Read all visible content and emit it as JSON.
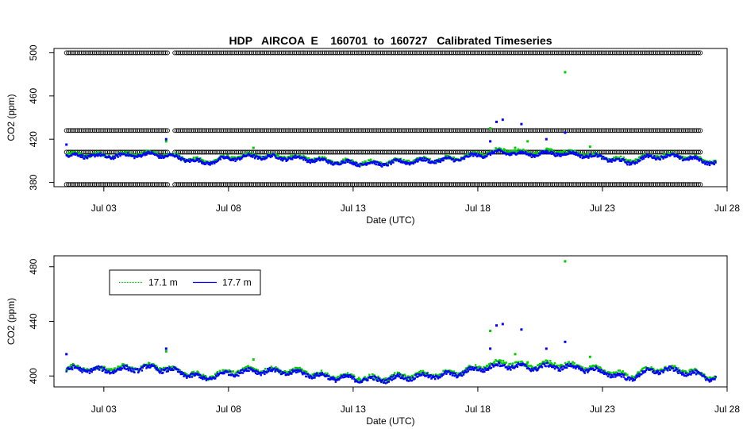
{
  "chart_data": [
    {
      "type": "scatter",
      "title": "HDP   AIRCOA  E    160701  to  160727   Calibrated Timeseries",
      "xlabel": "Date (UTC)",
      "ylabel": "CO2 (ppm)",
      "xlim": [
        "2016-07-01",
        "2016-07-28"
      ],
      "ylim": [
        376,
        504
      ],
      "xticks": [
        "Jul 03",
        "Jul 08",
        "Jul 13",
        "Jul 18",
        "Jul 23",
        "Jul 28"
      ],
      "yticks": [
        380,
        420,
        460,
        500
      ],
      "grid": false,
      "series": [
        {
          "marker": "open-circle",
          "color": "#000000",
          "levels": [
            378,
            408,
            428,
            500
          ],
          "x": [
            "2016-07-01",
            "2016-07-27"
          ]
        },
        {
          "marker": "dot",
          "color": "#00cc00",
          "x": [
            "2016-07-01",
            "2016-07-02",
            "2016-07-03",
            "2016-07-04",
            "2016-07-05",
            "2016-07-06",
            "2016-07-07",
            "2016-07-08",
            "2016-07-09",
            "2016-07-10",
            "2016-07-11",
            "2016-07-12",
            "2016-07-13",
            "2016-07-14",
            "2016-07-15",
            "2016-07-16",
            "2016-07-17",
            "2016-07-18",
            "2016-07-19",
            "2016-07-20",
            "2016-07-21",
            "2016-07-22",
            "2016-07-23",
            "2016-07-24",
            "2016-07-25",
            "2016-07-26",
            "2016-07-27"
          ],
          "y": [
            405,
            406,
            405,
            406,
            407,
            404,
            399,
            403,
            405,
            404,
            403,
            400,
            399,
            398,
            400,
            401,
            402,
            406,
            410,
            407,
            409,
            407,
            404,
            400,
            405,
            405,
            401
          ],
          "spikes": [
            [
              "2016-07-18 12:00",
              430
            ],
            [
              "2016-07-19 12:00",
              412
            ],
            [
              "2016-07-20 00:00",
              418
            ],
            [
              "2016-07-21 12:00",
              482
            ],
            [
              "2016-07-22 12:00",
              413
            ],
            [
              "2016-07-09 00:00",
              412
            ],
            [
              "2016-07-05 12:00",
              418
            ]
          ]
        },
        {
          "marker": "dot",
          "color": "#0000ff",
          "x": [
            "2016-07-01",
            "2016-07-02",
            "2016-07-03",
            "2016-07-04",
            "2016-07-05",
            "2016-07-06",
            "2016-07-07",
            "2016-07-08",
            "2016-07-09",
            "2016-07-10",
            "2016-07-11",
            "2016-07-12",
            "2016-07-13",
            "2016-07-14",
            "2016-07-15",
            "2016-07-16",
            "2016-07-17",
            "2016-07-18",
            "2016-07-19",
            "2016-07-20",
            "2016-07-21",
            "2016-07-22",
            "2016-07-23",
            "2016-07-24",
            "2016-07-25",
            "2016-07-26",
            "2016-07-27"
          ],
          "y": [
            404,
            405,
            404,
            405,
            406,
            403,
            398,
            402,
            404,
            403,
            402,
            399,
            398,
            397,
            399,
            400,
            401,
            405,
            408,
            406,
            407,
            406,
            403,
            398,
            404,
            404,
            400
          ],
          "spikes": [
            [
              "2016-07-01 12:00",
              415
            ],
            [
              "2016-07-05 12:00",
              420
            ],
            [
              "2016-07-18 18:00",
              436
            ],
            [
              "2016-07-19 00:00",
              438
            ],
            [
              "2016-07-19 18:00",
              434
            ],
            [
              "2016-07-20 18:00",
              420
            ],
            [
              "2016-07-21 12:00",
              426
            ],
            [
              "2016-07-18 12:00",
              418
            ]
          ]
        }
      ]
    },
    {
      "type": "scatter",
      "xlabel": "Date (UTC)",
      "ylabel": "CO2 (ppm)",
      "xlim": [
        "2016-07-01",
        "2016-07-28"
      ],
      "ylim": [
        392,
        488
      ],
      "xticks": [
        "Jul 03",
        "Jul 08",
        "Jul 13",
        "Jul 18",
        "Jul 23",
        "Jul 28"
      ],
      "yticks": [
        400,
        440,
        480
      ],
      "grid": false,
      "legend_position": "top-left",
      "series": [
        {
          "name": "17.1 m",
          "marker": "dot",
          "color": "#00cc00",
          "x": [
            "2016-07-01",
            "2016-07-02",
            "2016-07-03",
            "2016-07-04",
            "2016-07-05",
            "2016-07-06",
            "2016-07-07",
            "2016-07-08",
            "2016-07-09",
            "2016-07-10",
            "2016-07-11",
            "2016-07-12",
            "2016-07-13",
            "2016-07-14",
            "2016-07-15",
            "2016-07-16",
            "2016-07-17",
            "2016-07-18",
            "2016-07-19",
            "2016-07-20",
            "2016-07-21",
            "2016-07-22",
            "2016-07-23",
            "2016-07-24",
            "2016-07-25",
            "2016-07-26",
            "2016-07-27"
          ],
          "y": [
            405,
            406,
            405,
            406,
            407,
            404,
            399,
            403,
            405,
            404,
            403,
            400,
            399,
            398,
            400,
            401,
            402,
            406,
            410,
            407,
            409,
            407,
            404,
            400,
            405,
            405,
            401
          ],
          "spikes": [
            [
              "2016-07-18 12:00",
              433
            ],
            [
              "2016-07-19 12:00",
              416
            ],
            [
              "2016-07-20 00:00",
              410
            ],
            [
              "2016-07-21 12:00",
              484
            ],
            [
              "2016-07-22 12:00",
              414
            ],
            [
              "2016-07-09 00:00",
              412
            ],
            [
              "2016-07-05 12:00",
              418
            ]
          ]
        },
        {
          "name": "17.7 m",
          "marker": "dot",
          "color": "#0000ff",
          "x": [
            "2016-07-01",
            "2016-07-02",
            "2016-07-03",
            "2016-07-04",
            "2016-07-05",
            "2016-07-06",
            "2016-07-07",
            "2016-07-08",
            "2016-07-09",
            "2016-07-10",
            "2016-07-11",
            "2016-07-12",
            "2016-07-13",
            "2016-07-14",
            "2016-07-15",
            "2016-07-16",
            "2016-07-17",
            "2016-07-18",
            "2016-07-19",
            "2016-07-20",
            "2016-07-21",
            "2016-07-22",
            "2016-07-23",
            "2016-07-24",
            "2016-07-25",
            "2016-07-26",
            "2016-07-27"
          ],
          "y": [
            404,
            405,
            404,
            405,
            406,
            403,
            398,
            402,
            404,
            403,
            402,
            399,
            398,
            397,
            399,
            400,
            401,
            405,
            408,
            406,
            407,
            406,
            403,
            398,
            404,
            404,
            400
          ],
          "spikes": [
            [
              "2016-07-01 12:00",
              416
            ],
            [
              "2016-07-05 12:00",
              420
            ],
            [
              "2016-07-18 18:00",
              437
            ],
            [
              "2016-07-19 00:00",
              438
            ],
            [
              "2016-07-19 18:00",
              434
            ],
            [
              "2016-07-20 18:00",
              420
            ],
            [
              "2016-07-21 12:00",
              425
            ],
            [
              "2016-07-18 12:00",
              420
            ]
          ]
        }
      ]
    }
  ]
}
